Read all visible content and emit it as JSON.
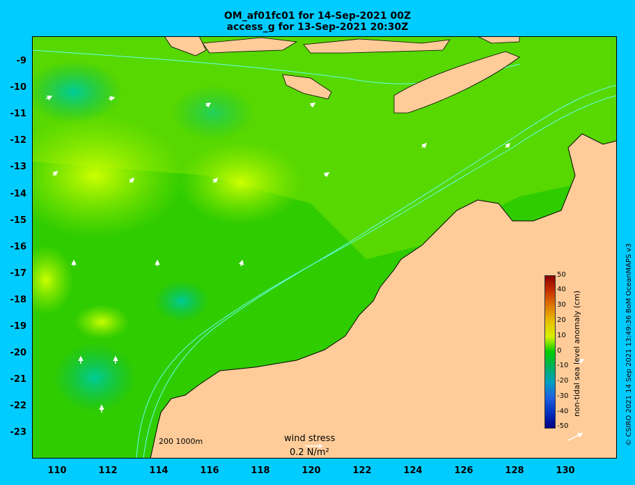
{
  "title_line1": "OM_af01fc01 for 14-Sep-2021 00Z",
  "title_line2": "access_g for 13-Sep-2021 20:30Z",
  "lat_labels": [
    "-9",
    "-10",
    "-11",
    "-12",
    "-13",
    "-14",
    "-15",
    "-16",
    "-17",
    "-18",
    "-19",
    "-20",
    "-21",
    "-22",
    "-23"
  ],
  "lon_labels": [
    "110",
    "112",
    "114",
    "116",
    "118",
    "120",
    "122",
    "124",
    "126",
    "128",
    "130"
  ],
  "colorbar": {
    "title": "non-tidal sea level anomaly (cm)",
    "ticks": [
      "50",
      "40",
      "30",
      "20",
      "10",
      "0",
      "-10",
      "-20",
      "-30",
      "-40",
      "-50"
    ],
    "stops": [
      "#8b0000",
      "#c83200",
      "#e07a00",
      "#e8c000",
      "#d8f000",
      "#00cc00",
      "#00b060",
      "#00a0c0",
      "#2060e0",
      "#0030c0",
      "#000080"
    ]
  },
  "wind_stress_label": "wind stress",
  "wind_stress_scale": "0.2 N/m²",
  "bathymetry_legend": "200  1000m",
  "credit": "© CSIRO 2021  14 Sep 2021 13:49:36 BoM OceanMAPS v3",
  "colors": {
    "background": "#00ccff",
    "land": "#ffcc99",
    "ocean_base": "#33cc00",
    "contour": "#66ffee"
  }
}
